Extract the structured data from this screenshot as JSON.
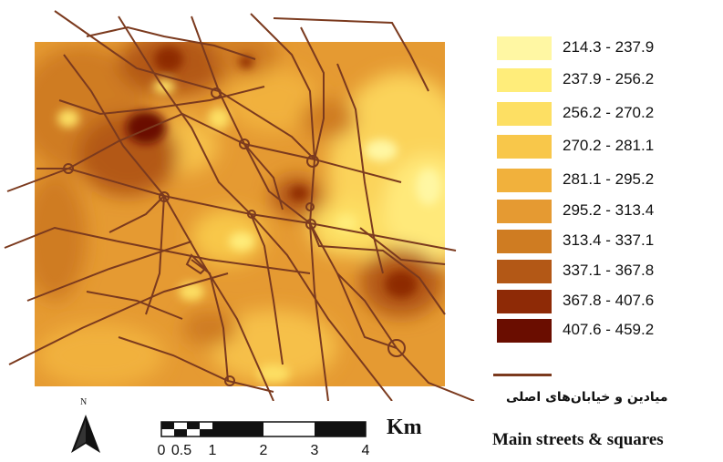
{
  "legend": {
    "classes": [
      {
        "range": "214.3 - 237.9",
        "color": "#fff7a3"
      },
      {
        "range": "237.9 - 256.2",
        "color": "#ffed7a"
      },
      {
        "range": "256.2 - 270.2",
        "color": "#fddf63"
      },
      {
        "range": "270.2 - 281.1",
        "color": "#f8c74a"
      },
      {
        "range": "281.1 - 295.2",
        "color": "#f1b13c"
      },
      {
        "range": "295.2 - 313.4",
        "color": "#e59a32"
      },
      {
        "range": "313.4 - 337.1",
        "color": "#cf7c22"
      },
      {
        "range": "337.1 - 367.8",
        "color": "#b35816"
      },
      {
        "range": "367.8 - 407.6",
        "color": "#8e2a06"
      },
      {
        "range": "407.6 - 459.2",
        "color": "#6a0d00"
      }
    ],
    "streets_label_fa": "میادین و خیابان‌های اصلی",
    "streets_label_en": "Main streets & squares",
    "street_color": "#7b3a1e"
  },
  "north_arrow": {
    "label": "N"
  },
  "scale_bar": {
    "ticks": [
      "0",
      "0.5",
      "1",
      "2",
      "3",
      "4"
    ],
    "unit": "Km"
  }
}
